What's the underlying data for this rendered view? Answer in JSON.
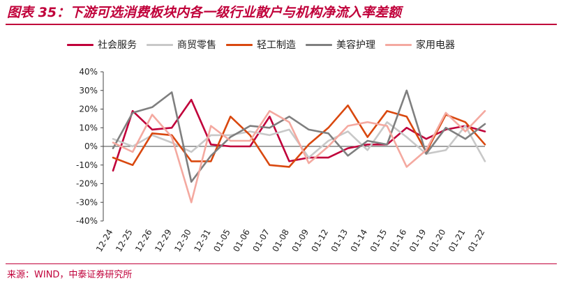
{
  "title": "图表 35：下游可选消费板块内各一级行业散户与机构净流入率差额",
  "source": "来源：WIND，中泰证券研究所",
  "chart_data": {
    "type": "line",
    "title": "",
    "xlabel": "",
    "ylabel": "",
    "ylim": [
      -40,
      40
    ],
    "yticks": [
      "40%",
      "30%",
      "20%",
      "10%",
      "0%",
      "-10%",
      "-20%",
      "-30%",
      "-40%"
    ],
    "grid": false,
    "legend_position": "top",
    "categories": [
      "12-24",
      "12-25",
      "12-26",
      "12-29",
      "12-30",
      "12-31",
      "01-05",
      "01-06",
      "01-07",
      "01-08",
      "01-09",
      "01-12",
      "01-13",
      "01-14",
      "01-15",
      "01-16",
      "01-19",
      "01-20",
      "01-21",
      "01-22"
    ],
    "series": [
      {
        "name": "社会服务",
        "color": "#c0003a",
        "values": [
          -13,
          19,
          9,
          10,
          25,
          1,
          0,
          0,
          16,
          -8,
          -6,
          -6,
          -1,
          1,
          1,
          10,
          4,
          9,
          11,
          8
        ]
      },
      {
        "name": "商贸零售",
        "color": "#c8c8c8",
        "values": [
          4,
          0,
          6,
          2,
          -3,
          6,
          6,
          8,
          6,
          9,
          -6,
          3,
          8,
          -2,
          13,
          5,
          -4,
          -2,
          11,
          -8
        ]
      },
      {
        "name": "轻工制造",
        "color": "#d9480f",
        "values": [
          -6,
          -10,
          7,
          6,
          -8,
          -8,
          16,
          6,
          -10,
          -11,
          1,
          10,
          22,
          5,
          19,
          16,
          -3,
          17,
          13,
          1
        ]
      },
      {
        "name": "美容护理",
        "color": "#7f7f7f",
        "values": [
          -1,
          18,
          21,
          29,
          -19,
          -5,
          5,
          11,
          10,
          16,
          9,
          7,
          -5,
          3,
          1,
          30,
          -4,
          10,
          4,
          12
        ]
      },
      {
        "name": "家用电器",
        "color": "#f4a9a0",
        "values": [
          2,
          -3,
          17,
          5,
          -30,
          11,
          3,
          3,
          19,
          13,
          -9,
          0,
          11,
          13,
          11,
          -11,
          -2,
          18,
          8,
          19
        ]
      }
    ]
  }
}
